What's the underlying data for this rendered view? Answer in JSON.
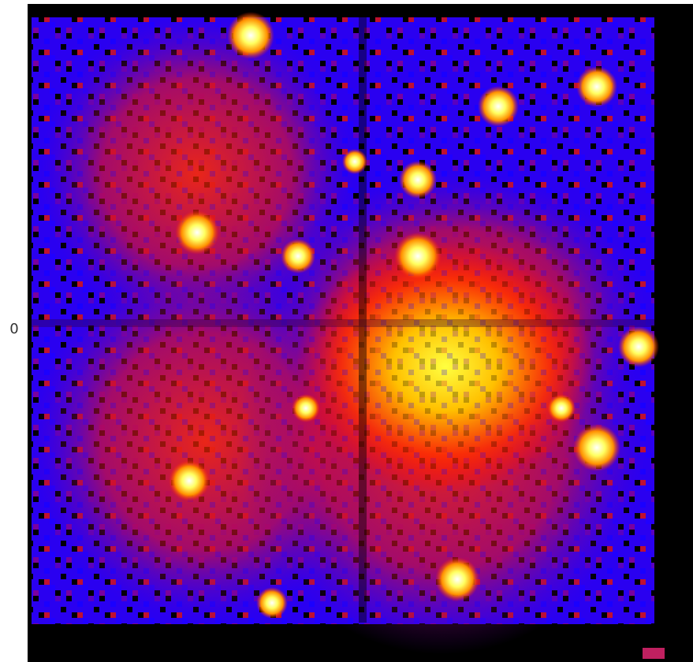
{
  "image": {
    "y_tick_label": "0"
  }
}
